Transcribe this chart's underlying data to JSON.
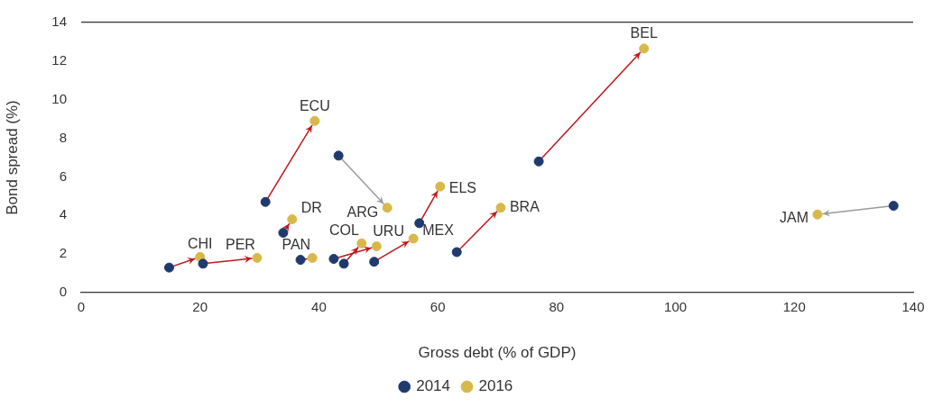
{
  "chart_data": {
    "type": "scatter",
    "xlabel": "Gross debt (% of GDP)",
    "ylabel": "Bond spread (%)",
    "xlim": [
      0,
      140
    ],
    "xticks": [
      0,
      20,
      40,
      60,
      80,
      100,
      120,
      140
    ],
    "ylim": [
      0,
      14
    ],
    "yticks": [
      0,
      2,
      4,
      6,
      8,
      10,
      12,
      14
    ],
    "legend": "bottom",
    "marker": "circle",
    "series": [
      {
        "name": "2014",
        "color": "#1f3a6e",
        "x": [
          14.8,
          20.5,
          34.0,
          31.0,
          43.3,
          36.9,
          44.2,
          42.5,
          49.3,
          56.9,
          63.2,
          77.0,
          136.7
        ],
        "values": [
          1.3,
          1.5,
          3.1,
          4.7,
          7.1,
          1.7,
          1.5,
          1.75,
          1.6,
          3.6,
          2.1,
          6.8,
          4.5
        ]
      },
      {
        "name": "2016",
        "color": "#d8b84a",
        "x": [
          20.0,
          29.6,
          35.5,
          39.3,
          51.5,
          38.9,
          47.2,
          49.7,
          55.9,
          60.4,
          70.6,
          94.7,
          123.9
        ],
        "values": [
          1.85,
          1.8,
          3.8,
          8.9,
          4.4,
          1.8,
          2.55,
          2.4,
          2.8,
          5.5,
          4.4,
          12.65,
          4.05
        ]
      }
    ],
    "annotations": [
      {
        "text": "CHI",
        "x": 20.0,
        "y": 1.85
      },
      {
        "text": "PER",
        "x": 29.6,
        "y": 1.8
      },
      {
        "text": "DR",
        "x": 35.5,
        "y": 3.8
      },
      {
        "text": "ECU",
        "x": 39.3,
        "y": 8.9
      },
      {
        "text": "ARG",
        "x": 51.5,
        "y": 4.4
      },
      {
        "text": "PAN",
        "x": 38.9,
        "y": 1.8
      },
      {
        "text": "COL",
        "x": 47.2,
        "y": 2.55
      },
      {
        "text": "URU",
        "x": 49.7,
        "y": 2.4
      },
      {
        "text": "MEX",
        "x": 55.9,
        "y": 2.8
      },
      {
        "text": "ELS",
        "x": 60.4,
        "y": 5.5
      },
      {
        "text": "BRA",
        "x": 70.6,
        "y": 4.4
      },
      {
        "text": "BEL",
        "x": 94.7,
        "y": 12.65
      },
      {
        "text": "JAM",
        "x": 123.9,
        "y": 4.05
      }
    ]
  }
}
